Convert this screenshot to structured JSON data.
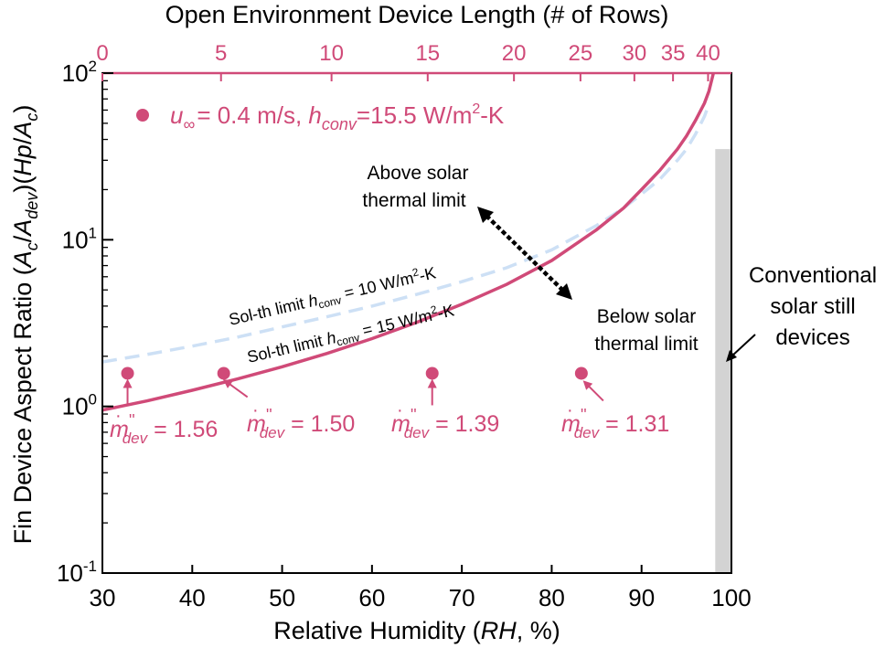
{
  "chart_data": {
    "type": "line",
    "xlabel_prefix": "Relative Humidity (",
    "xlabel_var": "RH",
    "xlabel_suffix": ", %)",
    "x_ticks": [
      "30",
      "40",
      "50",
      "60",
      "70",
      "80",
      "90",
      "100"
    ],
    "xlim": [
      30,
      100
    ],
    "ylabel_prefix": "Fin Device Aspect Ratio (",
    "ylabel_a1": "A",
    "ylabel_s1": "c",
    "ylabel_slash1": "/",
    "ylabel_a2": "A",
    "ylabel_s2": "dev",
    "ylabel_mid": ")(",
    "ylabel_hp": "Hp",
    "ylabel_slash2": "/",
    "ylabel_a3": "A",
    "ylabel_s3": "c",
    "ylabel_end": ")",
    "y_scale": "log",
    "ylim": [
      0.1,
      100
    ],
    "y_ticks": [
      {
        "value": 0.1,
        "base": "10",
        "exp": "-1"
      },
      {
        "value": 1,
        "base": "10",
        "exp": "0"
      },
      {
        "value": 10,
        "base": "10",
        "exp": "1"
      },
      {
        "value": 100,
        "base": "10",
        "exp": "2"
      }
    ],
    "top_axis": {
      "label": "Open Environment Device Length (# of Rows)",
      "color": "#d04a78",
      "ticks": [
        {
          "label": "0",
          "rh": 30.0
        },
        {
          "label": "5",
          "rh": 43.2
        },
        {
          "label": "10",
          "rh": 55.5
        },
        {
          "label": "15",
          "rh": 66.2
        },
        {
          "label": "20",
          "rh": 75.8
        },
        {
          "label": "25",
          "rh": 83.2
        },
        {
          "label": "30",
          "rh": 89.2
        },
        {
          "label": "35",
          "rh": 93.5
        },
        {
          "label": "40",
          "rh": 97.4
        }
      ]
    },
    "series": [
      {
        "style": "solid",
        "color": "#d04a78",
        "x": [
          30,
          35,
          40,
          45,
          50,
          55,
          60,
          65,
          70,
          75,
          80,
          85,
          88,
          90,
          92,
          94,
          95,
          96,
          97,
          97.5,
          98
        ],
        "y": [
          0.95,
          1.08,
          1.25,
          1.46,
          1.73,
          2.08,
          2.55,
          3.2,
          4.1,
          5.4,
          7.5,
          11.5,
          15.5,
          20,
          26,
          35,
          42,
          52,
          66,
          78,
          100
        ]
      },
      {
        "style": "dashed",
        "color": "#cde0f5",
        "x": [
          30,
          35,
          40,
          45,
          50,
          55,
          60,
          65,
          70,
          75,
          80,
          85,
          88,
          90,
          92,
          94,
          95,
          96,
          97,
          97.5
        ],
        "y": [
          1.85,
          2.05,
          2.3,
          2.6,
          3.0,
          3.45,
          4.0,
          4.7,
          5.6,
          6.8,
          8.7,
          12.2,
          15.5,
          18.8,
          23,
          30,
          35,
          43,
          55,
          65
        ]
      }
    ],
    "points": {
      "color": "#d04a78",
      "x": [
        32.8,
        43.5,
        66.7,
        83.3
      ],
      "y": [
        1.58,
        1.58,
        1.58,
        1.58
      ],
      "labels": [
        {
          "m": "m",
          "dot": "·",
          "prime": "''",
          "sub": "dev",
          "text": " = 1.56"
        },
        {
          "m": "m",
          "dot": "·",
          "prime": "''",
          "sub": "dev",
          "text": " = 1.50"
        },
        {
          "m": "m",
          "dot": "·",
          "prime": "''",
          "sub": "dev",
          "text": " = 1.39"
        },
        {
          "m": "m",
          "dot": "·",
          "prime": "''",
          "sub": "dev",
          "text": " = 1.31"
        }
      ]
    },
    "legend": {
      "placement": "top-left",
      "u": "u",
      "inf": "∞",
      "text1": "= 0.4 m/s, ",
      "h": "h",
      "conv": "conv",
      "text2": "=15.5 W/m",
      "sup": "2",
      "text3": "-K"
    },
    "line_labels": {
      "dashed": {
        "prefix": "Sol-th limit ",
        "h": "h",
        "conv": "conv",
        "mid": " = 10 W/m",
        "sup": "2",
        "end": "-K"
      },
      "solid": {
        "prefix": "Sol-th limit ",
        "h": "h",
        "conv": "conv",
        "mid": " = 15 W/m",
        "sup": "2",
        "end": "-K"
      }
    },
    "annotations": {
      "above": [
        "Above solar",
        "thermal limit"
      ],
      "below": [
        "Below solar",
        "thermal limit"
      ],
      "conventional": [
        "Conventional",
        "solar still",
        "devices"
      ]
    },
    "conventional_band": {
      "x": [
        98.2,
        100
      ],
      "y": [
        0.1,
        35
      ],
      "color": "#d3d3d3"
    }
  }
}
